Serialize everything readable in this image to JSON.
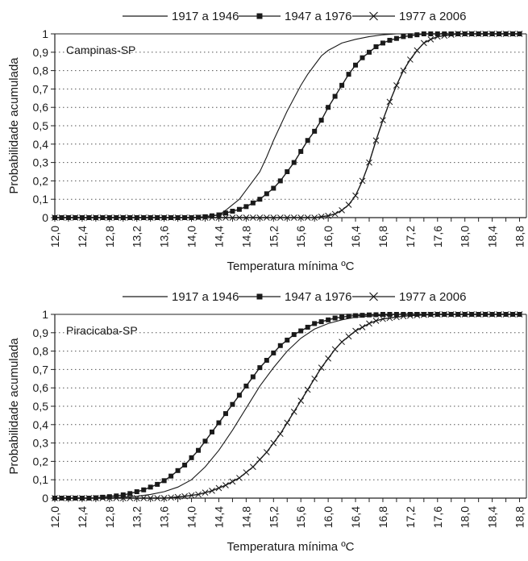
{
  "chart_data": [
    {
      "type": "line",
      "annotation": "Campinas-SP",
      "xlabel": "Temperatura mínima ºC",
      "ylabel": "Probabilidade acumulada",
      "xlim": [
        12.0,
        18.9
      ],
      "ylim": [
        0,
        1
      ],
      "x_ticks": [
        "12,0",
        "12,4",
        "12,8",
        "13,2",
        "13,6",
        "14,0",
        "14,4",
        "14,8",
        "15,2",
        "15,6",
        "16,0",
        "16,4",
        "16,8",
        "17,2",
        "17,6",
        "18,0",
        "18,4",
        "18,8"
      ],
      "y_ticks": [
        "0",
        "0,1",
        "0,2",
        "0,3",
        "0,4",
        "0,5",
        "0,6",
        "0,7",
        "0,8",
        "0,9",
        "1"
      ],
      "grid": "horizontal dotted",
      "legend_position": "top",
      "series": [
        {
          "name": "1917 a 1946",
          "marker": "none",
          "x": [
            12.0,
            14.0,
            14.2,
            14.4,
            14.5,
            14.6,
            14.7,
            14.8,
            14.9,
            15.0,
            15.1,
            15.2,
            15.3,
            15.4,
            15.5,
            15.6,
            15.7,
            15.8,
            15.9,
            16.0,
            16.1,
            16.2,
            16.4,
            16.6,
            16.8,
            17.0,
            17.2,
            17.4,
            18.9
          ],
          "y": [
            0,
            0,
            0.005,
            0.015,
            0.04,
            0.07,
            0.1,
            0.15,
            0.2,
            0.25,
            0.33,
            0.42,
            0.5,
            0.58,
            0.65,
            0.72,
            0.78,
            0.83,
            0.88,
            0.91,
            0.93,
            0.95,
            0.97,
            0.985,
            0.995,
            1,
            1,
            1,
            1
          ]
        },
        {
          "name": "1947 a 1976",
          "marker": "square",
          "x": [
            12.0,
            12.1,
            12.2,
            12.3,
            12.4,
            12.5,
            12.6,
            12.7,
            12.8,
            12.9,
            13.0,
            13.1,
            13.2,
            13.3,
            13.4,
            13.5,
            13.6,
            13.7,
            13.8,
            13.9,
            14.0,
            14.1,
            14.2,
            14.3,
            14.4,
            14.5,
            14.6,
            14.7,
            14.8,
            14.9,
            15.0,
            15.1,
            15.2,
            15.3,
            15.4,
            15.5,
            15.6,
            15.7,
            15.8,
            15.9,
            16.0,
            16.1,
            16.2,
            16.3,
            16.4,
            16.5,
            16.6,
            16.7,
            16.8,
            16.9,
            17.0,
            17.1,
            17.2,
            17.3,
            17.4,
            17.5,
            17.6,
            17.7,
            17.8,
            17.9,
            18.0,
            18.1,
            18.2,
            18.3,
            18.4,
            18.5,
            18.6,
            18.7,
            18.8
          ],
          "y": [
            0,
            0,
            0,
            0,
            0,
            0,
            0,
            0,
            0,
            0,
            0,
            0,
            0,
            0,
            0,
            0,
            0,
            0,
            0,
            0,
            0,
            0.002,
            0.005,
            0.01,
            0.015,
            0.025,
            0.035,
            0.045,
            0.06,
            0.08,
            0.1,
            0.13,
            0.16,
            0.2,
            0.25,
            0.3,
            0.36,
            0.42,
            0.47,
            0.53,
            0.6,
            0.66,
            0.72,
            0.78,
            0.83,
            0.87,
            0.9,
            0.93,
            0.95,
            0.965,
            0.975,
            0.985,
            0.99,
            0.995,
            1,
            1,
            1,
            1,
            1,
            1,
            1,
            1,
            1,
            1,
            1,
            1,
            1,
            1,
            1
          ]
        },
        {
          "name": "1977 a 2006",
          "marker": "x",
          "x": [
            12.0,
            12.1,
            12.2,
            12.3,
            12.4,
            12.5,
            12.6,
            12.7,
            12.8,
            12.9,
            13.0,
            13.1,
            13.2,
            13.3,
            13.4,
            13.5,
            13.6,
            13.7,
            13.8,
            13.9,
            14.0,
            14.1,
            14.2,
            14.3,
            14.4,
            14.5,
            14.6,
            14.7,
            14.8,
            14.9,
            15.0,
            15.1,
            15.2,
            15.3,
            15.4,
            15.5,
            15.6,
            15.7,
            15.8,
            15.9,
            16.0,
            16.1,
            16.2,
            16.3,
            16.4,
            16.5,
            16.6,
            16.7,
            16.8,
            16.9,
            17.0,
            17.1,
            17.2,
            17.3,
            17.4,
            17.5,
            17.6,
            17.7,
            17.8,
            17.9,
            18.0,
            18.1,
            18.2,
            18.3,
            18.4,
            18.5,
            18.6,
            18.7,
            18.8
          ],
          "y": [
            0,
            0,
            0,
            0,
            0,
            0,
            0,
            0,
            0,
            0,
            0,
            0,
            0,
            0,
            0,
            0,
            0,
            0,
            0,
            0,
            0,
            0,
            0,
            0,
            0,
            0,
            0,
            0,
            0,
            0,
            0,
            0,
            0,
            0,
            0,
            0,
            0,
            0,
            0,
            0.005,
            0.01,
            0.02,
            0.04,
            0.07,
            0.12,
            0.2,
            0.3,
            0.42,
            0.53,
            0.63,
            0.72,
            0.8,
            0.86,
            0.91,
            0.95,
            0.97,
            0.985,
            0.99,
            0.995,
            1,
            1,
            1,
            1,
            1,
            1,
            1,
            1,
            1,
            1
          ]
        }
      ]
    },
    {
      "type": "line",
      "annotation": "Piracicaba-SP",
      "xlabel": "Temperatura mínima ºC",
      "ylabel": "Probabilidade acumulada",
      "xlim": [
        12.0,
        18.9
      ],
      "ylim": [
        0,
        1
      ],
      "x_ticks": [
        "12,0",
        "12,4",
        "12,8",
        "13,2",
        "13,6",
        "14,0",
        "14,4",
        "14,8",
        "15,2",
        "15,6",
        "16,0",
        "16,4",
        "16,8",
        "17,2",
        "17,6",
        "18,0",
        "18,4",
        "18,8"
      ],
      "y_ticks": [
        "0",
        "0,1",
        "0,2",
        "0,3",
        "0,4",
        "0,5",
        "0,6",
        "0,7",
        "0,8",
        "0,9",
        "1"
      ],
      "grid": "horizontal dotted",
      "legend_position": "top",
      "series": [
        {
          "name": "1917 a 1946",
          "marker": "none",
          "x": [
            12.0,
            12.8,
            13.0,
            13.2,
            13.4,
            13.6,
            13.8,
            14.0,
            14.2,
            14.4,
            14.6,
            14.8,
            15.0,
            15.2,
            15.4,
            15.6,
            15.8,
            16.0,
            16.2,
            16.4,
            16.6,
            16.8,
            17.0,
            17.4,
            18.0,
            18.9
          ],
          "y": [
            0,
            0,
            0.005,
            0.01,
            0.02,
            0.035,
            0.06,
            0.1,
            0.17,
            0.26,
            0.37,
            0.49,
            0.61,
            0.71,
            0.8,
            0.87,
            0.92,
            0.95,
            0.97,
            0.985,
            0.99,
            0.995,
            1,
            1,
            1,
            1
          ]
        },
        {
          "name": "1947 a 1976",
          "marker": "square",
          "x": [
            12.0,
            12.1,
            12.2,
            12.3,
            12.4,
            12.5,
            12.6,
            12.7,
            12.8,
            12.9,
            13.0,
            13.1,
            13.2,
            13.3,
            13.4,
            13.5,
            13.6,
            13.7,
            13.8,
            13.9,
            14.0,
            14.1,
            14.2,
            14.3,
            14.4,
            14.5,
            14.6,
            14.7,
            14.8,
            14.9,
            15.0,
            15.1,
            15.2,
            15.3,
            15.4,
            15.5,
            15.6,
            15.7,
            15.8,
            15.9,
            16.0,
            16.1,
            16.2,
            16.3,
            16.4,
            16.5,
            16.6,
            16.7,
            16.8,
            16.9,
            17.0,
            17.1,
            17.2,
            17.3,
            17.4,
            17.5,
            17.6,
            17.7,
            17.8,
            17.9,
            18.0,
            18.1,
            18.2,
            18.3,
            18.4,
            18.5,
            18.6,
            18.7,
            18.8
          ],
          "y": [
            0,
            0,
            0,
            0,
            0,
            0,
            0.002,
            0.005,
            0.008,
            0.012,
            0.018,
            0.025,
            0.035,
            0.045,
            0.06,
            0.075,
            0.095,
            0.12,
            0.15,
            0.18,
            0.22,
            0.26,
            0.31,
            0.36,
            0.41,
            0.46,
            0.51,
            0.56,
            0.61,
            0.66,
            0.71,
            0.75,
            0.79,
            0.83,
            0.86,
            0.89,
            0.91,
            0.93,
            0.95,
            0.96,
            0.97,
            0.98,
            0.985,
            0.99,
            0.993,
            0.995,
            0.997,
            0.998,
            1,
            1,
            1,
            1,
            1,
            1,
            1,
            1,
            1,
            1,
            1,
            1,
            1,
            1,
            1,
            1,
            1,
            1,
            1,
            1,
            1
          ]
        },
        {
          "name": "1977 a 2006",
          "marker": "x",
          "x": [
            12.0,
            12.1,
            12.2,
            12.3,
            12.4,
            12.5,
            12.6,
            12.7,
            12.8,
            12.9,
            13.0,
            13.1,
            13.2,
            13.3,
            13.4,
            13.5,
            13.6,
            13.7,
            13.8,
            13.9,
            14.0,
            14.1,
            14.2,
            14.3,
            14.4,
            14.5,
            14.6,
            14.7,
            14.8,
            14.9,
            15.0,
            15.1,
            15.2,
            15.3,
            15.4,
            15.5,
            15.6,
            15.7,
            15.8,
            15.9,
            16.0,
            16.1,
            16.2,
            16.3,
            16.4,
            16.5,
            16.6,
            16.7,
            16.8,
            16.9,
            17.0,
            17.1,
            17.2,
            17.3,
            17.4,
            17.5,
            17.6,
            17.7,
            17.8,
            17.9,
            18.0,
            18.1,
            18.2,
            18.3,
            18.4,
            18.5,
            18.6,
            18.7,
            18.8
          ],
          "y": [
            0,
            0,
            0,
            0,
            0,
            0,
            0,
            0,
            0,
            0,
            0,
            0,
            0,
            0,
            0,
            0,
            0,
            0.003,
            0.006,
            0.01,
            0.015,
            0.02,
            0.03,
            0.04,
            0.055,
            0.07,
            0.09,
            0.11,
            0.14,
            0.17,
            0.21,
            0.25,
            0.3,
            0.35,
            0.41,
            0.47,
            0.53,
            0.59,
            0.65,
            0.71,
            0.76,
            0.81,
            0.85,
            0.88,
            0.91,
            0.93,
            0.95,
            0.965,
            0.975,
            0.98,
            0.985,
            0.99,
            0.993,
            0.995,
            0.997,
            0.998,
            1,
            1,
            1,
            1,
            1,
            1,
            1,
            1,
            1,
            1,
            1,
            1,
            1
          ]
        }
      ]
    }
  ]
}
